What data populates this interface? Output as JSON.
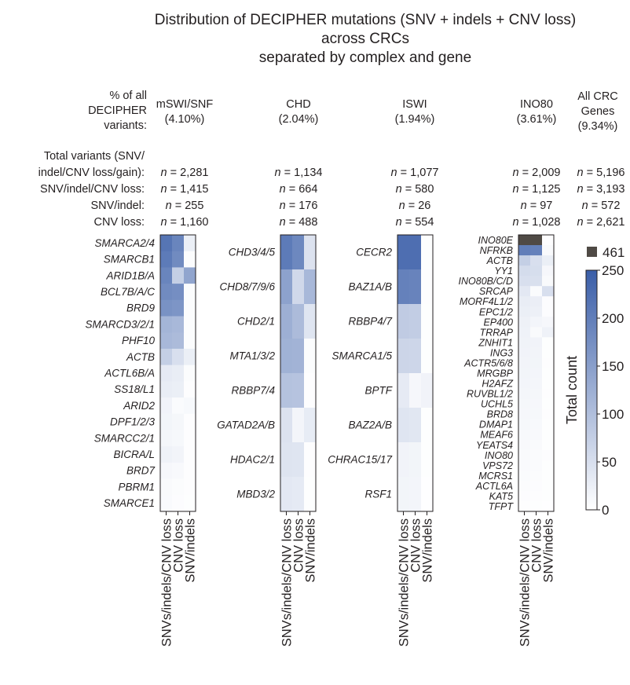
{
  "title": [
    "Distribution of DECIPHER mutations (SNV + indels + CNV loss)",
    "across CRCs",
    "separated by complex and gene"
  ],
  "header_label": [
    "% of all",
    "DECIPHER",
    "variants:"
  ],
  "row_labels": [
    "Total variants (SNV/",
    "indel/CNV loss/gain):",
    "SNV/indel/CNV loss:",
    "SNV/indel:",
    "CNV loss:"
  ],
  "n_prefix": "n",
  "complexes": [
    {
      "name": "mSWI/SNF",
      "pct": "(4.10%)",
      "total": "2,281",
      "snv_indel_cnv": "1,415",
      "snv_indel": "255",
      "cnv_loss": "1,160"
    },
    {
      "name": "CHD",
      "pct": "(2.04%)",
      "total": "1,134",
      "snv_indel_cnv": "664",
      "snv_indel": "176",
      "cnv_loss": "488"
    },
    {
      "name": "ISWI",
      "pct": "(1.94%)",
      "total": "1,077",
      "snv_indel_cnv": "580",
      "snv_indel": "26",
      "cnv_loss": "554"
    },
    {
      "name": "INO80",
      "pct": "(3.61%)",
      "total": "2,009",
      "snv_indel_cnv": "1,125",
      "snv_indel": "97",
      "cnv_loss": "1,028"
    },
    {
      "name_lines": [
        "All CRC",
        "Genes"
      ],
      "pct": "(9.34%)",
      "total": "5,196",
      "snv_indel_cnv": "3,193",
      "snv_indel": "572",
      "cnv_loss": "2,621"
    }
  ],
  "chart_data": {
    "type": "heatmap",
    "columns": [
      "SNVs/indels/CNV loss",
      "CNV loss",
      "SNV/indels"
    ],
    "colorbar": {
      "label": "Total count",
      "min": 0,
      "max": 250,
      "ticks": [
        0,
        50,
        100,
        150,
        200,
        250
      ],
      "low_color": "#ffffff",
      "high_color": "#3a5ea8",
      "overflow_value": 461,
      "overflow_label": "461",
      "overflow_color": "#4f4a45"
    },
    "panels": [
      {
        "complex": "mSWI/SNF",
        "genes": [
          {
            "gene": "SMARCA2/4",
            "values": [
              215,
              190,
              25
            ]
          },
          {
            "gene": "SMARCB1",
            "values": [
              205,
              180,
              5
            ]
          },
          {
            "gene": "ARID1B/A",
            "values": [
              190,
              75,
              140
            ]
          },
          {
            "gene": "BCL7B/A/C",
            "values": [
              180,
              175,
              5
            ]
          },
          {
            "gene": "BRD9",
            "values": [
              170,
              165,
              5
            ]
          },
          {
            "gene": "SMARCD3/2/1",
            "values": [
              115,
              110,
              5
            ]
          },
          {
            "gene": "PHF10",
            "values": [
              110,
              105,
              5
            ]
          },
          {
            "gene": "ACTB",
            "values": [
              75,
              50,
              25
            ]
          },
          {
            "gene": "ACTL6B/A",
            "values": [
              32,
              28,
              5
            ]
          },
          {
            "gene": "SS18/L1",
            "values": [
              28,
              25,
              3
            ]
          },
          {
            "gene": "ARID2",
            "values": [
              18,
              6,
              10
            ]
          },
          {
            "gene": "DPF1/2/3",
            "values": [
              16,
              13,
              3
            ]
          },
          {
            "gene": "SMARCC2/1",
            "values": [
              14,
              11,
              3
            ]
          },
          {
            "gene": "BICRA/L",
            "values": [
              20,
              17,
              3
            ]
          },
          {
            "gene": "BRD7",
            "values": [
              12,
              9,
              3
            ]
          },
          {
            "gene": "PBRM1",
            "values": [
              8,
              5,
              3
            ]
          },
          {
            "gene": "SMARCE1",
            "values": [
              7,
              4,
              2
            ]
          }
        ]
      },
      {
        "complex": "CHD",
        "genes": [
          {
            "gene": "CHD3/4/5",
            "values": [
              205,
              185,
              45
            ]
          },
          {
            "gene": "CHD8/7/9/6",
            "values": [
              145,
              60,
              110
            ]
          },
          {
            "gene": "CHD2/1",
            "values": [
              125,
              105,
              40
            ]
          },
          {
            "gene": "MTA1/3/2",
            "values": [
              120,
              118,
              5
            ]
          },
          {
            "gene": "RBBP7/4",
            "values": [
              95,
              93,
              3
            ]
          },
          {
            "gene": "GATAD2A/B",
            "values": [
              45,
              15,
              30
            ]
          },
          {
            "gene": "HDAC2/1",
            "values": [
              42,
              40,
              3
            ]
          },
          {
            "gene": "MBD3/2",
            "values": [
              35,
              33,
              2
            ]
          }
        ]
      },
      {
        "complex": "ISWI",
        "genes": [
          {
            "gene": "CECR2",
            "values": [
              225,
              225,
              2
            ]
          },
          {
            "gene": "BAZ1A/B",
            "values": [
              195,
              192,
              3
            ]
          },
          {
            "gene": "RBBP4/7",
            "values": [
              80,
              78,
              2
            ]
          },
          {
            "gene": "SMARCA1/5",
            "values": [
              65,
              63,
              2
            ]
          },
          {
            "gene": "BPTF",
            "values": [
              32,
              12,
              18
            ]
          },
          {
            "gene": "BAZ2A/B",
            "values": [
              40,
              38,
              2
            ]
          },
          {
            "gene": "CHRAC15/17",
            "values": [
              18,
              16,
              2
            ]
          },
          {
            "gene": "RSF1",
            "values": [
              16,
              15,
              1
            ]
          }
        ]
      },
      {
        "complex": "INO80",
        "genes": [
          {
            "gene": "INO80E",
            "values": [
              461,
              461,
              3
            ]
          },
          {
            "gene": "NFRKB",
            "values": [
              200,
              195,
              8
            ]
          },
          {
            "gene": "ACTB",
            "values": [
              75,
              50,
              25
            ]
          },
          {
            "gene": "YY1",
            "values": [
              55,
              52,
              12
            ]
          },
          {
            "gene": "INO80B/C/D",
            "values": [
              50,
              48,
              8
            ]
          },
          {
            "gene": "SRCAP",
            "values": [
              35,
              6,
              50
            ]
          },
          {
            "gene": "MORF4L1/2",
            "values": [
              28,
              26,
              4
            ]
          },
          {
            "gene": "EPC1/2",
            "values": [
              25,
              23,
              4
            ]
          },
          {
            "gene": "EP400",
            "values": [
              22,
              15,
              12
            ]
          },
          {
            "gene": "TRRAP",
            "values": [
              20,
              8,
              20
            ]
          },
          {
            "gene": "ZNHIT1",
            "values": [
              19,
              18,
              2
            ]
          },
          {
            "gene": "ING3",
            "values": [
              18,
              17,
              2
            ]
          },
          {
            "gene": "ACTR5/6/8",
            "values": [
              17,
              16,
              3
            ]
          },
          {
            "gene": "MRGBP",
            "values": [
              16,
              15,
              2
            ]
          },
          {
            "gene": "H2AFZ",
            "values": [
              15,
              14,
              2
            ]
          },
          {
            "gene": "RUVBL1/2",
            "values": [
              14,
              13,
              3
            ]
          },
          {
            "gene": "UCHL5",
            "values": [
              13,
              12,
              2
            ]
          },
          {
            "gene": "BRD8",
            "values": [
              12,
              11,
              3
            ]
          },
          {
            "gene": "DMAP1",
            "values": [
              11,
              10,
              2
            ]
          },
          {
            "gene": "MEAF6",
            "values": [
              10,
              9,
              2
            ]
          },
          {
            "gene": "YEATS4",
            "values": [
              9,
              8,
              2
            ]
          },
          {
            "gene": "INO80",
            "values": [
              8,
              6,
              4
            ]
          },
          {
            "gene": "VPS72",
            "values": [
              7,
              6,
              2
            ]
          },
          {
            "gene": "MCRS1",
            "values": [
              6,
              5,
              2
            ]
          },
          {
            "gene": "ACTL6A",
            "values": [
              5,
              4,
              2
            ]
          },
          {
            "gene": "KAT5",
            "values": [
              4,
              3,
              2
            ]
          },
          {
            "gene": "TFPT",
            "values": [
              3,
              2,
              1
            ]
          }
        ]
      }
    ]
  }
}
